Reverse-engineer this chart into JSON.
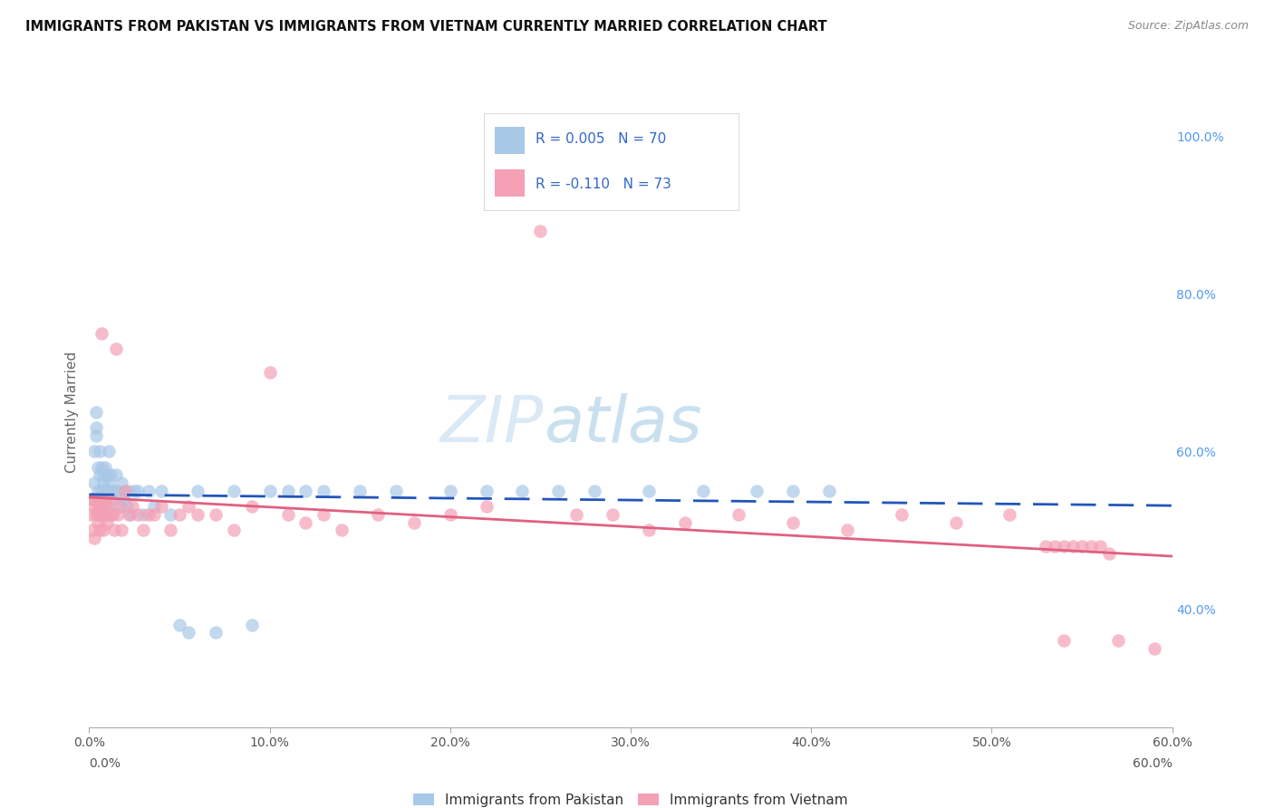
{
  "title": "IMMIGRANTS FROM PAKISTAN VS IMMIGRANTS FROM VIETNAM CURRENTLY MARRIED CORRELATION CHART",
  "source": "Source: ZipAtlas.com",
  "ylabel": "Currently Married",
  "xlim": [
    0.0,
    0.6
  ],
  "ylim": [
    0.25,
    1.05
  ],
  "xticks": [
    0.0,
    0.1,
    0.2,
    0.3,
    0.4,
    0.5,
    0.6
  ],
  "right_yticks": [
    0.4,
    0.6,
    0.8,
    1.0
  ],
  "right_ytick_labels": [
    "40.0%",
    "60.0%",
    "80.0%",
    "100.0%"
  ],
  "pakistan_R": 0.005,
  "pakistan_N": 70,
  "vietnam_R": -0.11,
  "vietnam_N": 73,
  "pakistan_color": "#a8c8e8",
  "vietnam_color": "#f4a0b5",
  "pakistan_line_color": "#2255bb",
  "vietnam_line_color": "#e06080",
  "background_color": "#ffffff",
  "grid_color": "#cccccc",
  "watermark_color": "#c8dff0",
  "legend_text_color": "#3366cc",
  "pakistan_x": [
    0.002,
    0.003,
    0.003,
    0.004,
    0.004,
    0.004,
    0.005,
    0.005,
    0.005,
    0.006,
    0.006,
    0.006,
    0.007,
    0.007,
    0.007,
    0.008,
    0.008,
    0.008,
    0.008,
    0.009,
    0.009,
    0.009,
    0.01,
    0.01,
    0.01,
    0.011,
    0.011,
    0.012,
    0.012,
    0.013,
    0.013,
    0.014,
    0.015,
    0.016,
    0.017,
    0.018,
    0.019,
    0.02,
    0.021,
    0.022,
    0.023,
    0.025,
    0.027,
    0.03,
    0.033,
    0.036,
    0.04,
    0.045,
    0.05,
    0.055,
    0.06,
    0.07,
    0.08,
    0.09,
    0.1,
    0.11,
    0.12,
    0.13,
    0.15,
    0.17,
    0.2,
    0.22,
    0.24,
    0.26,
    0.28,
    0.31,
    0.34,
    0.37,
    0.39,
    0.41
  ],
  "pakistan_y": [
    0.54,
    0.56,
    0.6,
    0.63,
    0.65,
    0.62,
    0.58,
    0.55,
    0.52,
    0.57,
    0.53,
    0.6,
    0.55,
    0.58,
    0.52,
    0.56,
    0.54,
    0.57,
    0.53,
    0.55,
    0.58,
    0.52,
    0.55,
    0.57,
    0.53,
    0.56,
    0.6,
    0.54,
    0.57,
    0.55,
    0.52,
    0.55,
    0.57,
    0.55,
    0.53,
    0.56,
    0.54,
    0.55,
    0.53,
    0.55,
    0.52,
    0.55,
    0.55,
    0.52,
    0.55,
    0.53,
    0.55,
    0.52,
    0.38,
    0.37,
    0.55,
    0.37,
    0.55,
    0.38,
    0.55,
    0.55,
    0.55,
    0.55,
    0.55,
    0.55,
    0.55,
    0.55,
    0.55,
    0.55,
    0.55,
    0.55,
    0.55,
    0.55,
    0.55,
    0.55
  ],
  "vietnam_x": [
    0.001,
    0.002,
    0.002,
    0.003,
    0.003,
    0.004,
    0.004,
    0.005,
    0.005,
    0.006,
    0.006,
    0.007,
    0.007,
    0.008,
    0.008,
    0.009,
    0.009,
    0.01,
    0.01,
    0.011,
    0.012,
    0.013,
    0.014,
    0.015,
    0.016,
    0.017,
    0.018,
    0.02,
    0.022,
    0.024,
    0.027,
    0.03,
    0.033,
    0.036,
    0.04,
    0.045,
    0.05,
    0.055,
    0.06,
    0.07,
    0.08,
    0.09,
    0.1,
    0.11,
    0.12,
    0.13,
    0.14,
    0.16,
    0.18,
    0.2,
    0.22,
    0.25,
    0.27,
    0.29,
    0.31,
    0.33,
    0.36,
    0.39,
    0.42,
    0.45,
    0.48,
    0.51,
    0.54,
    0.57,
    0.59,
    0.53,
    0.535,
    0.54,
    0.545,
    0.55,
    0.555,
    0.56,
    0.565
  ],
  "vietnam_y": [
    0.52,
    0.54,
    0.5,
    0.53,
    0.49,
    0.52,
    0.54,
    0.51,
    0.53,
    0.5,
    0.52,
    0.75,
    0.52,
    0.53,
    0.5,
    0.54,
    0.52,
    0.51,
    0.53,
    0.52,
    0.54,
    0.52,
    0.5,
    0.73,
    0.52,
    0.53,
    0.5,
    0.55,
    0.52,
    0.53,
    0.52,
    0.5,
    0.52,
    0.52,
    0.53,
    0.5,
    0.52,
    0.53,
    0.52,
    0.52,
    0.5,
    0.53,
    0.7,
    0.52,
    0.51,
    0.52,
    0.5,
    0.52,
    0.51,
    0.52,
    0.53,
    0.88,
    0.52,
    0.52,
    0.5,
    0.51,
    0.52,
    0.51,
    0.5,
    0.52,
    0.51,
    0.52,
    0.36,
    0.36,
    0.35,
    0.48,
    0.48,
    0.48,
    0.48,
    0.48,
    0.48,
    0.48,
    0.47
  ]
}
